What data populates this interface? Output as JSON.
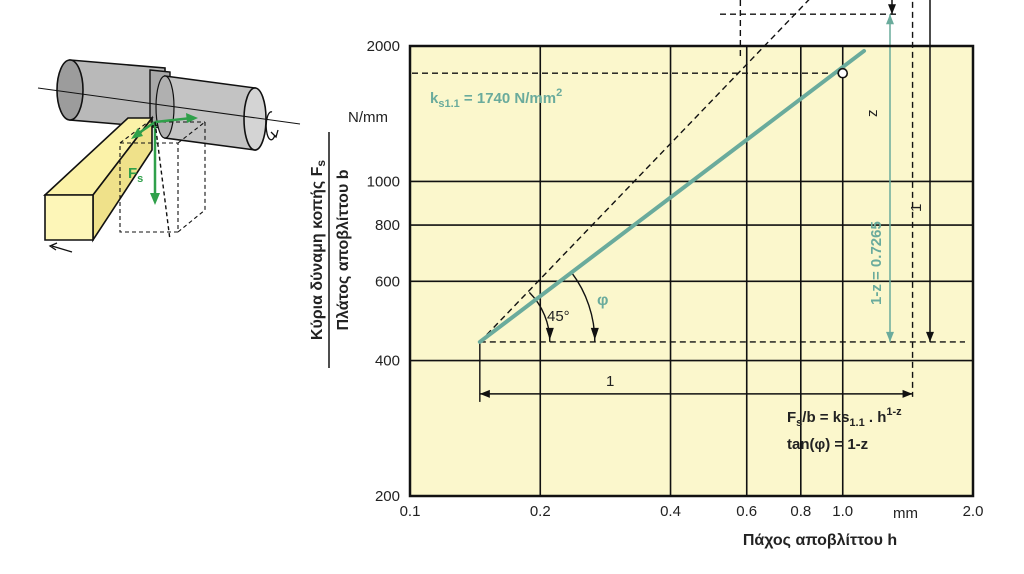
{
  "colors": {
    "plot_bg": "#fbf7cc",
    "line": "#6aab9c",
    "axis": "#111111",
    "workpiece": "#b9b9b9",
    "tool": "#fbf2a8",
    "force_arrow": "#2fa04a"
  },
  "chart_data": {
    "type": "line",
    "x_scale": "log",
    "y_scale": "log",
    "xlim": [
      0.1,
      2.0
    ],
    "ylim": [
      200,
      2000
    ],
    "grid": true,
    "xlabel": "Πάχος αποβλίττου h",
    "x_unit": "mm",
    "ylabel_line1": "Κύρια δύναμη κοπής F",
    "ylabel_line1_sub": "s",
    "ylabel_line2": "Πλάτος αποβλίττου b",
    "y_unit": "N/mm",
    "x_ticks": [
      {
        "value": 0.1,
        "label": "0.1"
      },
      {
        "value": 0.2,
        "label": "0.2"
      },
      {
        "value": 0.4,
        "label": "0.4"
      },
      {
        "value": 0.6,
        "label": "0.6"
      },
      {
        "value": 0.8,
        "label": "0.8"
      },
      {
        "value": 1.0,
        "label": "1.0"
      },
      {
        "value": 2.0,
        "label": "2.0"
      }
    ],
    "y_ticks": [
      {
        "value": 200,
        "label": "200"
      },
      {
        "value": 400,
        "label": "400"
      },
      {
        "value": 600,
        "label": "600"
      },
      {
        "value": 800,
        "label": "800"
      },
      {
        "value": 1000,
        "label": "1000"
      },
      {
        "value": 2000,
        "label": "2000"
      }
    ],
    "series": [
      {
        "x": [
          0.145,
          1.12
        ],
        "y": [
          440,
          1950
        ],
        "marker_point": {
          "x": 1.0,
          "y": 1740
        }
      }
    ],
    "annotations": {
      "ks_label_main": "k",
      "ks_label_sub": "s1.1",
      "ks_label_rest": " = 1740 N/mm",
      "ks_label_sup": "2",
      "angle_45": "45°",
      "angle_phi": "φ",
      "dim_1_horizontal": "1",
      "dim_z": "z",
      "dim_1_vertical": "1",
      "dim_1z": "1-z = 0.7265",
      "formula1_a": "F",
      "formula1_a_sub": "s",
      "formula1_b": "/b = ks",
      "formula1_b_sub": "1.1",
      "formula1_c": " . h",
      "formula1_c_sup": "1-z",
      "formula2": "tan(φ) = 1-z"
    }
  },
  "illustration": {
    "force_label": "F",
    "force_label_sub": "s"
  }
}
